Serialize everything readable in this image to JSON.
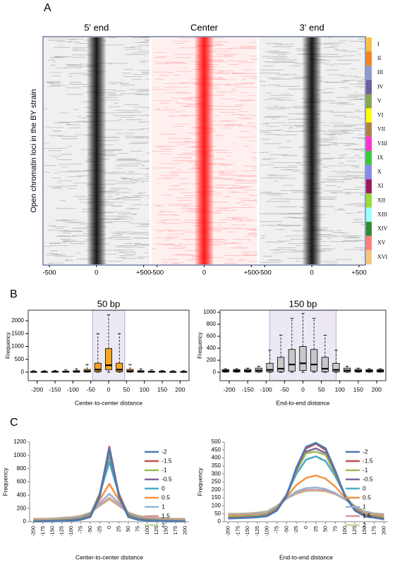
{
  "chart_data": [
    {
      "type": "heatmap",
      "panel_label": "A",
      "ylabel": "Open chromatin loci in the BY strain",
      "panels": [
        {
          "title": "5' end",
          "color": "#000000",
          "title_color": "#000000"
        },
        {
          "title": "Center",
          "color": "#ff0000",
          "title_color": "#e01010"
        },
        {
          "title": "3' end",
          "color": "#000000",
          "title_color": "#000000"
        }
      ],
      "xlim": [
        -560,
        560
      ],
      "xticks": [
        -500,
        0,
        {
          "value": 500,
          "label": "+500"
        }
      ],
      "chromosomes": {
        "categories": [
          "I",
          "II",
          "III",
          "IV",
          "V",
          "VI",
          "VII",
          "VIII",
          "IX",
          "X",
          "XI",
          "XII",
          "XIII",
          "XIV",
          "XV",
          "XVI"
        ],
        "colors": [
          "#f5c342",
          "#f58220",
          "#8c9cc8",
          "#6d5c9e",
          "#8aa64a",
          "#ffff00",
          "#b08040",
          "#ff33cc",
          "#33cc33",
          "#8a8aee",
          "#a0185c",
          "#99dd33",
          "#99ffff",
          "#2e8b2e",
          "#ff8080",
          "#f5c77e"
        ]
      }
    },
    {
      "type": "box",
      "panel_label": "B",
      "title": "50 bp",
      "title_color": "#e01010",
      "ylabel": "Frequency",
      "xlabel": "Center-to-center distance",
      "color": "#f5a623",
      "highlight_range": [
        -45,
        45
      ],
      "x": [
        -210,
        -180,
        -150,
        -120,
        -90,
        -60,
        -30,
        0,
        30,
        60,
        90,
        120,
        150,
        180,
        210
      ],
      "whisker_low": [
        0,
        0,
        0,
        0,
        0,
        0,
        0,
        0,
        0,
        0,
        0,
        0,
        0,
        0,
        0
      ],
      "q1": [
        0,
        0,
        0,
        0,
        0,
        5,
        20,
        100,
        20,
        5,
        0,
        0,
        0,
        0,
        0
      ],
      "median": [
        10,
        10,
        15,
        15,
        20,
        40,
        100,
        270,
        100,
        40,
        20,
        15,
        15,
        10,
        10
      ],
      "q3": [
        30,
        30,
        35,
        40,
        60,
        110,
        350,
        920,
        350,
        110,
        60,
        40,
        35,
        30,
        30
      ],
      "whisker_high": [
        60,
        60,
        70,
        90,
        130,
        300,
        1500,
        2230,
        1500,
        300,
        130,
        90,
        70,
        60,
        60
      ],
      "xlim": [
        -225,
        225
      ],
      "ylim": [
        -330,
        2410
      ],
      "xticks": [
        -200,
        -150,
        -100,
        -50,
        0,
        50,
        100,
        150,
        200
      ],
      "yticks": [
        0,
        500,
        1000,
        1500,
        2000
      ]
    },
    {
      "type": "box",
      "title": "150 bp",
      "title_color": "#000000",
      "ylabel": "Frequency",
      "xlabel": "End-to-end distance",
      "color": "#c8c8c8",
      "highlight_range": [
        -90,
        90
      ],
      "x": [
        -210,
        -180,
        -150,
        -120,
        -90,
        -60,
        -30,
        0,
        30,
        60,
        90,
        120,
        150,
        180,
        210
      ],
      "whisker_low": [
        0,
        0,
        0,
        0,
        0,
        0,
        0,
        0,
        0,
        0,
        0,
        0,
        0,
        0,
        0
      ],
      "q1": [
        5,
        5,
        5,
        5,
        10,
        10,
        20,
        30,
        20,
        10,
        10,
        5,
        5,
        5,
        5
      ],
      "median": [
        25,
        25,
        25,
        30,
        40,
        60,
        130,
        150,
        130,
        60,
        40,
        30,
        25,
        25,
        25
      ],
      "q3": [
        45,
        45,
        50,
        70,
        150,
        250,
        380,
        430,
        380,
        250,
        150,
        70,
        50,
        45,
        45
      ],
      "whisker_high": [
        60,
        60,
        70,
        100,
        370,
        620,
        900,
        980,
        900,
        620,
        370,
        100,
        70,
        60,
        60
      ],
      "xlim": [
        -225,
        225
      ],
      "ylim": [
        -140,
        1035
      ],
      "xticks": [
        -200,
        -150,
        -100,
        -50,
        0,
        50,
        100,
        150,
        200
      ],
      "yticks": [
        0,
        200,
        400,
        600,
        800,
        1000
      ]
    },
    {
      "type": "line",
      "panel_label": "C",
      "ylabel": "Frequency",
      "xlabel": "Center-to-center distance",
      "x": [
        -200,
        -175,
        -150,
        -125,
        -100,
        -75,
        -50,
        -25,
        0,
        25,
        50,
        75,
        100,
        125,
        150,
        175,
        200
      ],
      "series": [
        {
          "name": "-2",
          "color": "#4a7ab5",
          "values": [
            5,
            5,
            5,
            10,
            15,
            30,
            70,
            380,
            1100,
            380,
            70,
            30,
            15,
            10,
            5,
            5,
            5
          ]
        },
        {
          "name": "-1.5",
          "color": "#c0504d",
          "values": [
            5,
            5,
            8,
            10,
            20,
            35,
            80,
            400,
            1130,
            400,
            80,
            35,
            20,
            10,
            8,
            5,
            5
          ]
        },
        {
          "name": "-1",
          "color": "#9bbb59",
          "values": [
            10,
            10,
            12,
            15,
            25,
            40,
            90,
            420,
            1050,
            420,
            90,
            40,
            25,
            15,
            12,
            10,
            10
          ]
        },
        {
          "name": "-0.5",
          "color": "#8064a2",
          "values": [
            10,
            12,
            15,
            20,
            30,
            45,
            100,
            430,
            1000,
            430,
            100,
            45,
            30,
            20,
            15,
            12,
            10
          ]
        },
        {
          "name": "0",
          "color": "#4bacc6",
          "values": [
            15,
            15,
            20,
            25,
            35,
            55,
            110,
            420,
            900,
            420,
            110,
            55,
            35,
            25,
            20,
            15,
            15
          ]
        },
        {
          "name": "0.5",
          "color": "#f79646",
          "values": [
            25,
            25,
            30,
            35,
            45,
            65,
            120,
            330,
            570,
            330,
            120,
            65,
            45,
            35,
            30,
            25,
            25
          ]
        },
        {
          "name": "1",
          "color": "#95b3d7",
          "values": [
            35,
            35,
            40,
            45,
            55,
            75,
            130,
            280,
            420,
            280,
            130,
            75,
            55,
            45,
            40,
            35,
            35
          ]
        },
        {
          "name": "1.5",
          "color": "#d99694",
          "values": [
            40,
            40,
            45,
            55,
            65,
            85,
            135,
            250,
            360,
            250,
            135,
            85,
            65,
            55,
            45,
            40,
            40
          ]
        },
        {
          "name": "2",
          "color": "#c3d69b",
          "values": [
            45,
            45,
            50,
            60,
            70,
            90,
            140,
            240,
            330,
            240,
            140,
            90,
            70,
            60,
            50,
            45,
            45
          ]
        }
      ],
      "xlim": [
        -210,
        210
      ],
      "ylim": [
        0,
        1200
      ],
      "xticks": [
        -200,
        -175,
        -150,
        -125,
        -100,
        -75,
        -50,
        -25,
        0,
        25,
        50,
        75,
        100,
        125,
        150,
        175,
        200
      ],
      "yticks": [
        0,
        200,
        400,
        600,
        800,
        1000,
        1200
      ]
    },
    {
      "type": "line",
      "ylabel": "Frequency",
      "xlabel": "End-to-end distance",
      "x": [
        -200,
        -175,
        -150,
        -125,
        -100,
        -75,
        -50,
        -25,
        0,
        25,
        50,
        75,
        100,
        125,
        150,
        175,
        200
      ],
      "series": [
        {
          "name": "-2",
          "color": "#4a7ab5",
          "values": [
            20,
            22,
            25,
            28,
            35,
            70,
            160,
            340,
            470,
            495,
            460,
            320,
            160,
            70,
            35,
            25,
            15
          ]
        },
        {
          "name": "-1.5",
          "color": "#c0504d",
          "values": [
            25,
            25,
            28,
            30,
            38,
            75,
            165,
            330,
            460,
            490,
            450,
            310,
            160,
            75,
            38,
            28,
            20
          ]
        },
        {
          "name": "-1",
          "color": "#9bbb59",
          "values": [
            30,
            30,
            32,
            35,
            42,
            80,
            170,
            320,
            430,
            440,
            420,
            300,
            165,
            80,
            42,
            32,
            28
          ]
        },
        {
          "name": "-0.5",
          "color": "#8064a2",
          "values": [
            30,
            30,
            33,
            36,
            44,
            82,
            172,
            325,
            440,
            460,
            430,
            305,
            168,
            82,
            44,
            33,
            28
          ]
        },
        {
          "name": "0",
          "color": "#4bacc6",
          "values": [
            32,
            32,
            35,
            38,
            46,
            85,
            170,
            300,
            390,
            410,
            380,
            285,
            165,
            85,
            46,
            35,
            30
          ]
        },
        {
          "name": "0.5",
          "color": "#f79646",
          "values": [
            40,
            40,
            42,
            45,
            52,
            90,
            155,
            230,
            275,
            290,
            270,
            220,
            150,
            90,
            52,
            42,
            38
          ]
        },
        {
          "name": "1",
          "color": "#95b3d7",
          "values": [
            45,
            45,
            48,
            52,
            60,
            95,
            145,
            190,
            210,
            215,
            205,
            180,
            140,
            95,
            60,
            48,
            44
          ]
        },
        {
          "name": "1.5",
          "color": "#d99694",
          "values": [
            48,
            48,
            50,
            55,
            63,
            97,
            145,
            180,
            198,
            200,
            195,
            175,
            140,
            97,
            63,
            50,
            46
          ]
        },
        {
          "name": "2",
          "color": "#c3d69b",
          "values": [
            50,
            50,
            52,
            57,
            65,
            100,
            145,
            175,
            192,
            195,
            190,
            172,
            140,
            100,
            65,
            52,
            48
          ]
        }
      ],
      "xlim": [
        -210,
        210
      ],
      "ylim": [
        0,
        500
      ],
      "xticks": [
        -200,
        -175,
        -150,
        -125,
        -100,
        -75,
        -50,
        -25,
        0,
        25,
        50,
        75,
        100,
        125,
        150,
        175,
        200
      ],
      "yticks": [
        0,
        50,
        100,
        150,
        200,
        250,
        300,
        350,
        400,
        450,
        500
      ]
    }
  ]
}
